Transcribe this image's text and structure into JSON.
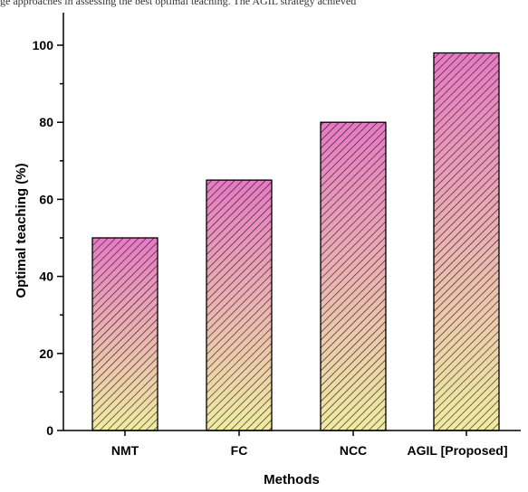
{
  "caption_fragment": "ge approaches in assessing the best optimal teaching. The AGIL strategy achieved",
  "chart_data": {
    "type": "bar",
    "categories": [
      "NMT",
      "FC",
      "NCC",
      "AGIL [Proposed]"
    ],
    "values": [
      50,
      65,
      80,
      98
    ],
    "xlabel": "Methods",
    "ylabel": "Optimal teaching (%)",
    "ylim": [
      0,
      100
    ],
    "yticks": [
      0,
      20,
      40,
      60,
      80,
      100
    ],
    "yticklabels": [
      "0",
      "20",
      "40",
      "60",
      "80",
      "100"
    ],
    "grid": false,
    "legend": "none",
    "bar_fill": "gradient pink-to-yellow with diagonal hatching",
    "colors": {
      "gradient_top": "#e879c4",
      "gradient_bottom": "#f0eca0",
      "hatch": "#222222",
      "axis": "#000000"
    }
  }
}
